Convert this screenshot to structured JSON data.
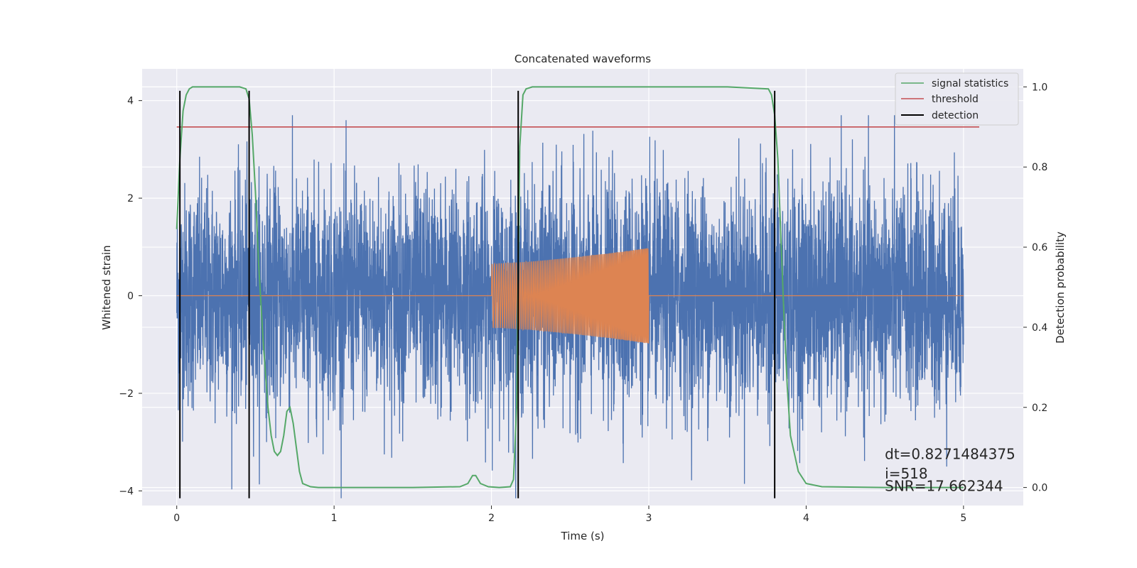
{
  "chart_data": {
    "type": "line",
    "title": "Concatenated waveforms",
    "xlabel": "Time (s)",
    "ylabel": "Whitened strain",
    "ylabel_right": "Detection probability",
    "xlim": [
      -0.22,
      5.38
    ],
    "ylim": [
      -4.3,
      4.65
    ],
    "ylim_right": [
      -0.045,
      1.045
    ],
    "x_ticks": [
      0,
      1,
      2,
      3,
      4,
      5
    ],
    "y_ticks": [
      -4,
      -2,
      0,
      2,
      4
    ],
    "y_ticks_right": [
      0.0,
      0.2,
      0.4,
      0.6,
      0.8,
      1.0
    ],
    "x_tick_labels": [
      "0",
      "1",
      "2",
      "3",
      "4",
      "5"
    ],
    "y_tick_labels": [
      "−4",
      "−2",
      "0",
      "2",
      "4"
    ],
    "y_tick_labels_right": [
      "0.0",
      "0.2",
      "0.4",
      "0.6",
      "0.8",
      "1.0"
    ],
    "grid": true,
    "legend_position": "top-right",
    "colors": {
      "strain": "#4c72b0",
      "signal": "#dd8452",
      "statistics": "#55a868",
      "threshold": "#c44e52",
      "detection": "#000000",
      "plot_bg": "#eaeaf2"
    },
    "series": [
      {
        "name": "",
        "axis": "left",
        "kind": "noise",
        "x_range": [
          0,
          5
        ],
        "amplitude_estimate": 1.2,
        "peak_max": 3.7,
        "peak_min": -4.15
      },
      {
        "name": "",
        "axis": "left",
        "kind": "chirp",
        "x": [
          0,
          2,
          2.25,
          2.5,
          2.75,
          3,
          3.0001,
          5
        ],
        "amplitude": [
          0,
          0.65,
          0.7,
          0.78,
          0.87,
          0.98,
          0,
          0
        ]
      },
      {
        "name": "signal statistics",
        "axis": "right",
        "x": [
          0,
          0.02,
          0.04,
          0.06,
          0.08,
          0.1,
          0.15,
          0.2,
          0.3,
          0.4,
          0.44,
          0.46,
          0.48,
          0.5,
          0.52,
          0.55,
          0.58,
          0.6,
          0.62,
          0.64,
          0.66,
          0.68,
          0.7,
          0.72,
          0.74,
          0.76,
          0.78,
          0.8,
          0.85,
          0.9,
          1.0,
          1.5,
          1.8,
          1.85,
          1.88,
          1.9,
          1.93,
          1.98,
          2.05,
          2.12,
          2.14,
          2.16,
          2.18,
          2.2,
          2.22,
          2.26,
          2.4,
          3.0,
          3.5,
          3.76,
          3.78,
          3.8,
          3.82,
          3.84,
          3.86,
          3.88,
          3.9,
          3.95,
          4.0,
          4.1,
          4.5,
          5.0
        ],
        "values": [
          0.645,
          0.82,
          0.94,
          0.98,
          0.995,
          1.0,
          1.0,
          1.0,
          1.0,
          1.0,
          0.995,
          0.97,
          0.88,
          0.74,
          0.56,
          0.36,
          0.2,
          0.13,
          0.09,
          0.08,
          0.09,
          0.13,
          0.19,
          0.2,
          0.16,
          0.1,
          0.04,
          0.01,
          0.002,
          0.0,
          0.0,
          0.0,
          0.002,
          0.01,
          0.03,
          0.03,
          0.01,
          0.002,
          0.0,
          0.002,
          0.02,
          0.2,
          0.85,
          0.98,
          0.995,
          1.0,
          1.0,
          1.0,
          1.0,
          0.995,
          0.98,
          0.93,
          0.82,
          0.62,
          0.42,
          0.25,
          0.13,
          0.04,
          0.01,
          0.002,
          0.0,
          0.0
        ]
      },
      {
        "name": "threshold",
        "axis": "right",
        "x": [
          0,
          5.1
        ],
        "values": [
          0.9,
          0.9
        ]
      },
      {
        "name": "detection",
        "axis": "left",
        "kind": "vlines",
        "x": [
          0.02,
          0.46,
          2.17,
          3.8
        ],
        "y_range": [
          -4.15,
          4.2
        ]
      }
    ],
    "annotations": [
      {
        "text": "dt=0.8271484375",
        "x": 4.5,
        "y": -3.35
      },
      {
        "text": " i=518",
        "x": 4.5,
        "y": -3.75
      },
      {
        "text": "SNR=17.662344",
        "x": 4.5,
        "y": -4.0
      }
    ]
  }
}
